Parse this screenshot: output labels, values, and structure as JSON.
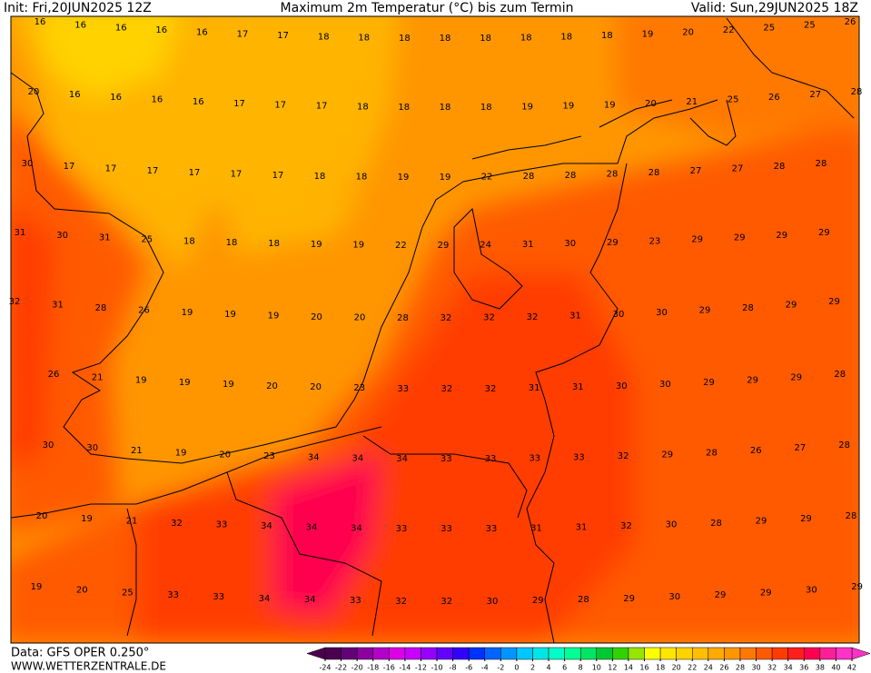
{
  "header": {
    "init": "Init: Fri,20JUN2025 12Z",
    "title": "Maximum 2m Temperatur (°C) bis zum Termin",
    "valid": "Valid: Sun,29JUN2025 18Z"
  },
  "map": {
    "rows": [
      [
        16,
        16,
        16,
        16,
        16,
        17,
        17,
        18,
        18,
        18,
        18,
        18,
        18,
        18,
        18,
        19,
        20,
        22,
        25,
        25,
        26
      ],
      [
        20,
        16,
        16,
        16,
        16,
        17,
        17,
        17,
        18,
        18,
        18,
        18,
        19,
        19,
        19,
        20,
        21,
        25,
        26,
        27,
        28
      ],
      [
        30,
        17,
        17,
        17,
        17,
        17,
        17,
        18,
        18,
        19,
        19,
        22,
        28,
        28,
        28,
        28,
        27,
        27,
        28,
        28
      ],
      [
        31,
        30,
        31,
        25,
        18,
        18,
        18,
        19,
        19,
        22,
        29,
        24,
        31,
        30,
        29,
        23,
        29,
        29,
        29,
        29
      ],
      [
        32,
        31,
        28,
        26,
        19,
        19,
        19,
        20,
        20,
        28,
        32,
        32,
        32,
        31,
        30,
        30,
        29,
        28,
        29,
        29
      ],
      [
        26,
        21,
        19,
        19,
        19,
        20,
        20,
        23,
        33,
        32,
        32,
        31,
        31,
        30,
        30,
        29,
        29,
        29,
        28
      ],
      [
        30,
        30,
        21,
        19,
        20,
        23,
        34,
        34,
        34,
        33,
        33,
        33,
        33,
        32,
        29,
        28,
        26,
        27,
        28
      ],
      [
        20,
        19,
        21,
        32,
        33,
        34,
        34,
        34,
        33,
        33,
        33,
        31,
        31,
        32,
        30,
        28,
        29,
        29,
        28
      ],
      [
        19,
        20,
        25,
        33,
        33,
        34,
        34,
        33,
        32,
        32,
        30,
        29,
        28,
        29,
        30,
        29,
        29,
        30,
        29
      ]
    ]
  },
  "colorbar": {
    "ticks": [
      -24,
      -22,
      -20,
      -18,
      -16,
      -14,
      -12,
      -10,
      -8,
      -6,
      -4,
      -2,
      0,
      2,
      4,
      6,
      8,
      10,
      12,
      14,
      16,
      18,
      20,
      22,
      24,
      26,
      28,
      30,
      32,
      34,
      36,
      38,
      40,
      42
    ],
    "colors": [
      "#4b0050",
      "#640078",
      "#8c00a0",
      "#b400c8",
      "#dc00e6",
      "#c800ff",
      "#9600ff",
      "#6400ff",
      "#3200ff",
      "#0032ff",
      "#0064ff",
      "#0096ff",
      "#00c8ff",
      "#00e6e6",
      "#00ffc8",
      "#00ff96",
      "#00e664",
      "#00c832",
      "#32d200",
      "#96e600",
      "#ffff00",
      "#ffe600",
      "#ffd200",
      "#ffbe00",
      "#ffaa00",
      "#ff9600",
      "#ff7800",
      "#ff5a00",
      "#ff3c00",
      "#ff1e1e",
      "#ff0050",
      "#ff1e96",
      "#ff32c8"
    ]
  },
  "footer": {
    "data": "Data: GFS OPER 0.250°",
    "site": "WWW.WETTERZENTRALE.DE"
  }
}
